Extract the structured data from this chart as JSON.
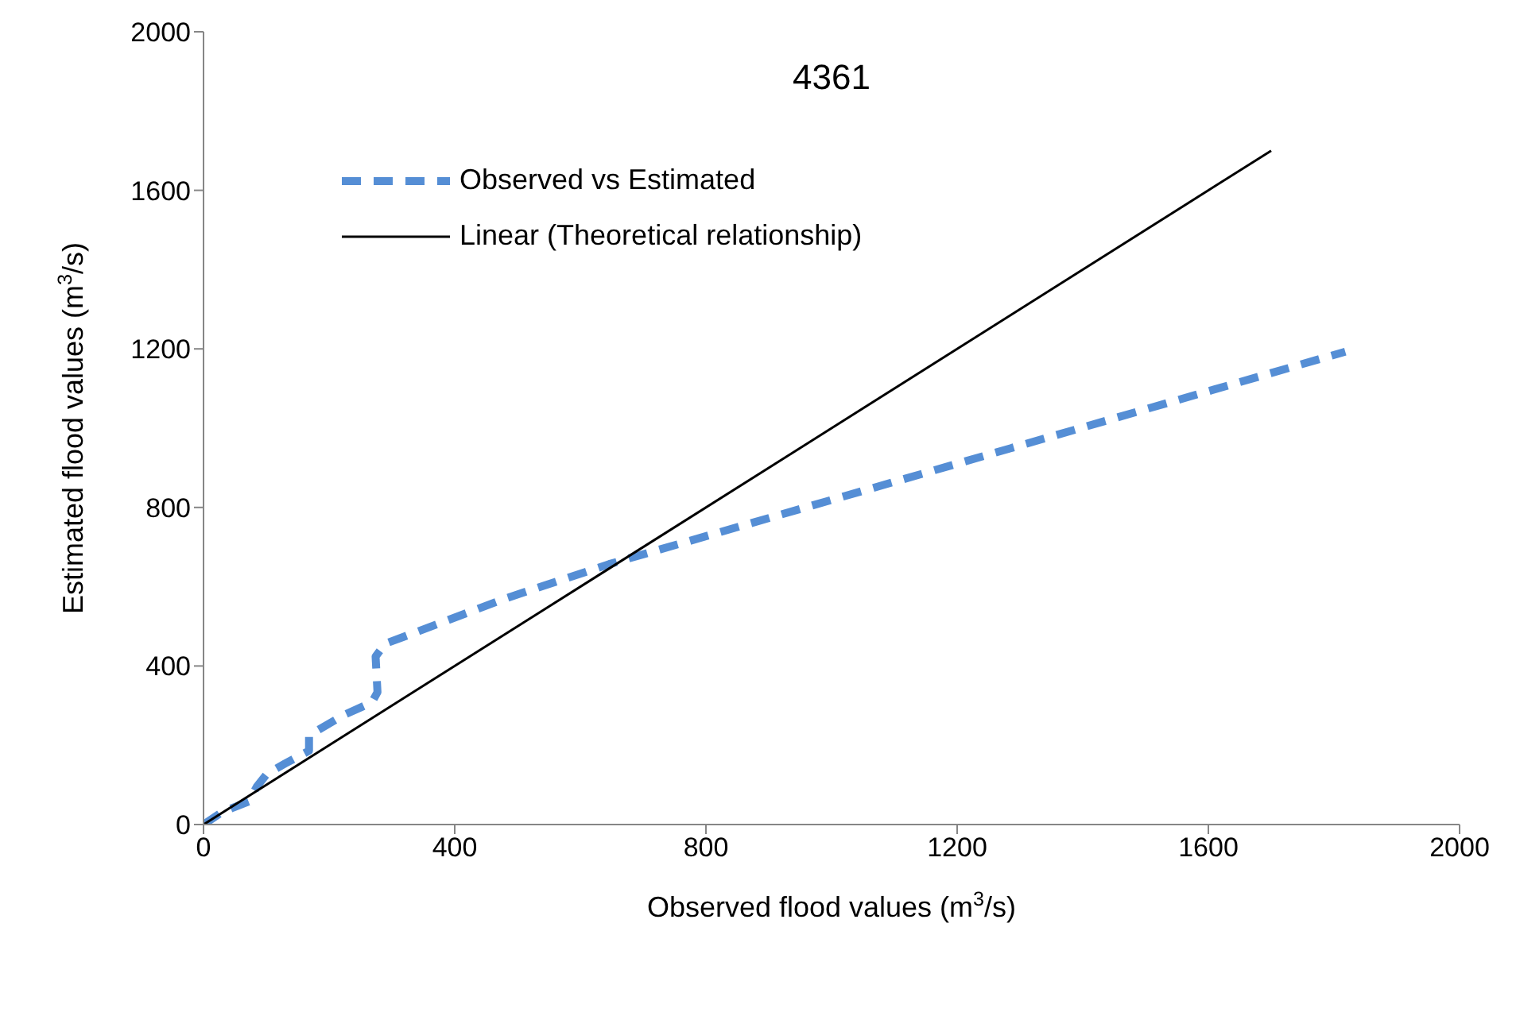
{
  "chart_data": {
    "type": "line",
    "title": "4361",
    "xlabel": "Observed flood values (m$^{3}$/s)",
    "ylabel": "Estimated flood values (m$^{3}$/s)",
    "xlim": [
      0,
      2000
    ],
    "ylim": [
      0,
      2000
    ],
    "xticks": [
      0,
      400,
      800,
      1200,
      1600,
      2000
    ],
    "yticks": [
      0,
      400,
      800,
      1200,
      1600,
      2000
    ],
    "grid": false,
    "legend": "top left",
    "marker": "none",
    "series": [
      {
        "name": "Observed vs Estimated",
        "color": "#558ed5",
        "line_style": "dashed",
        "x": [
          0,
          30,
          72,
          85,
          101,
          130,
          168,
          168,
          223,
          268,
          277,
          274,
          289,
          482,
          646,
          1818
        ],
        "values": [
          0,
          32,
          58,
          96,
          128,
          154,
          186,
          225,
          276,
          308,
          334,
          424,
          456,
          571,
          657,
          1193
        ]
      },
      {
        "name": "Linear (Theoretical relationship)",
        "color": "#000000",
        "line_style": "solid",
        "x": [
          0,
          1700
        ],
        "values": [
          0,
          1700
        ]
      }
    ]
  }
}
